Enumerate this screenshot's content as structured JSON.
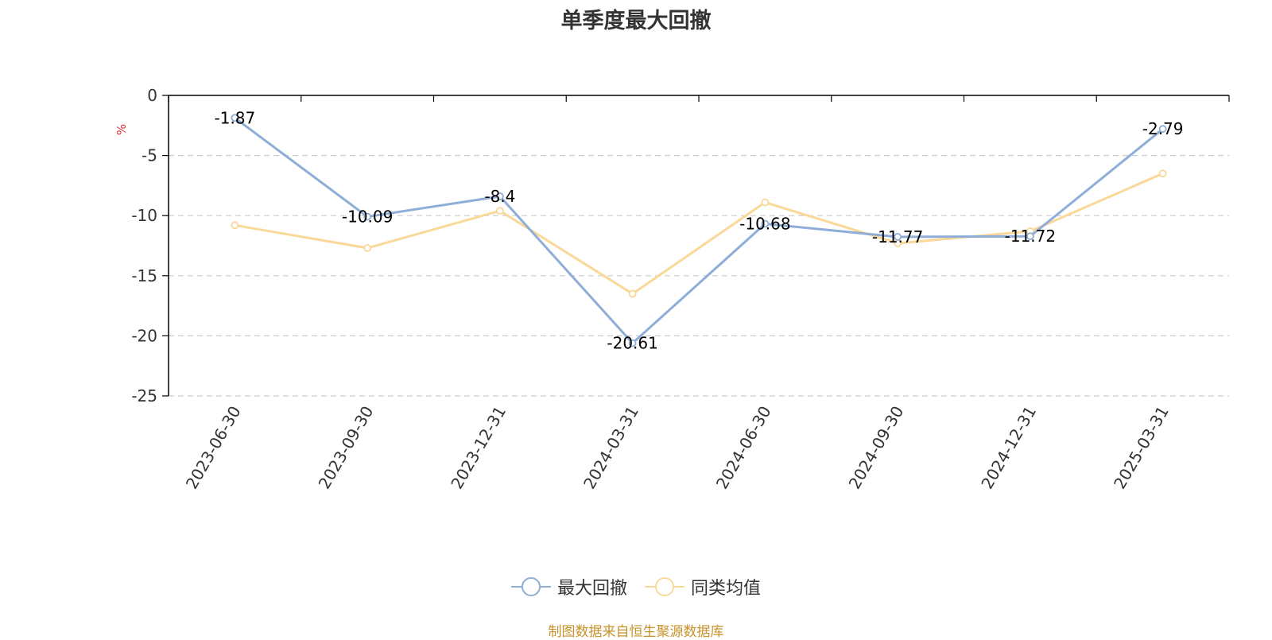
{
  "chart_data": {
    "type": "line",
    "title": "单季度最大回撤",
    "ylabel": "%",
    "xlabel": "",
    "categories": [
      "2023-06-30",
      "2023-09-30",
      "2023-12-31",
      "2024-03-31",
      "2024-06-30",
      "2024-09-30",
      "2024-12-31",
      "2025-03-31"
    ],
    "ylim": [
      -25,
      0
    ],
    "yticks": [
      0,
      -5,
      -10,
      -15,
      -20,
      -25
    ],
    "grid": true,
    "legend_position": "bottom",
    "series": [
      {
        "name": "最大回撤",
        "color": "#8eaed8",
        "values": [
          -1.87,
          -10.09,
          -8.4,
          -20.61,
          -10.68,
          -11.77,
          -11.72,
          -2.79
        ],
        "labels": [
          "-1.87",
          "-10.09",
          "-8.4",
          "-20.61",
          "-10.68",
          "-11.77",
          "-11.72",
          "-2.79"
        ]
      },
      {
        "name": "同类均值",
        "color": "#f9d898",
        "values": [
          -10.8,
          -12.7,
          -9.6,
          -16.5,
          -8.9,
          -12.3,
          -11.3,
          -6.5
        ]
      }
    ]
  },
  "source_note": "制图数据来自恒生聚源数据库"
}
